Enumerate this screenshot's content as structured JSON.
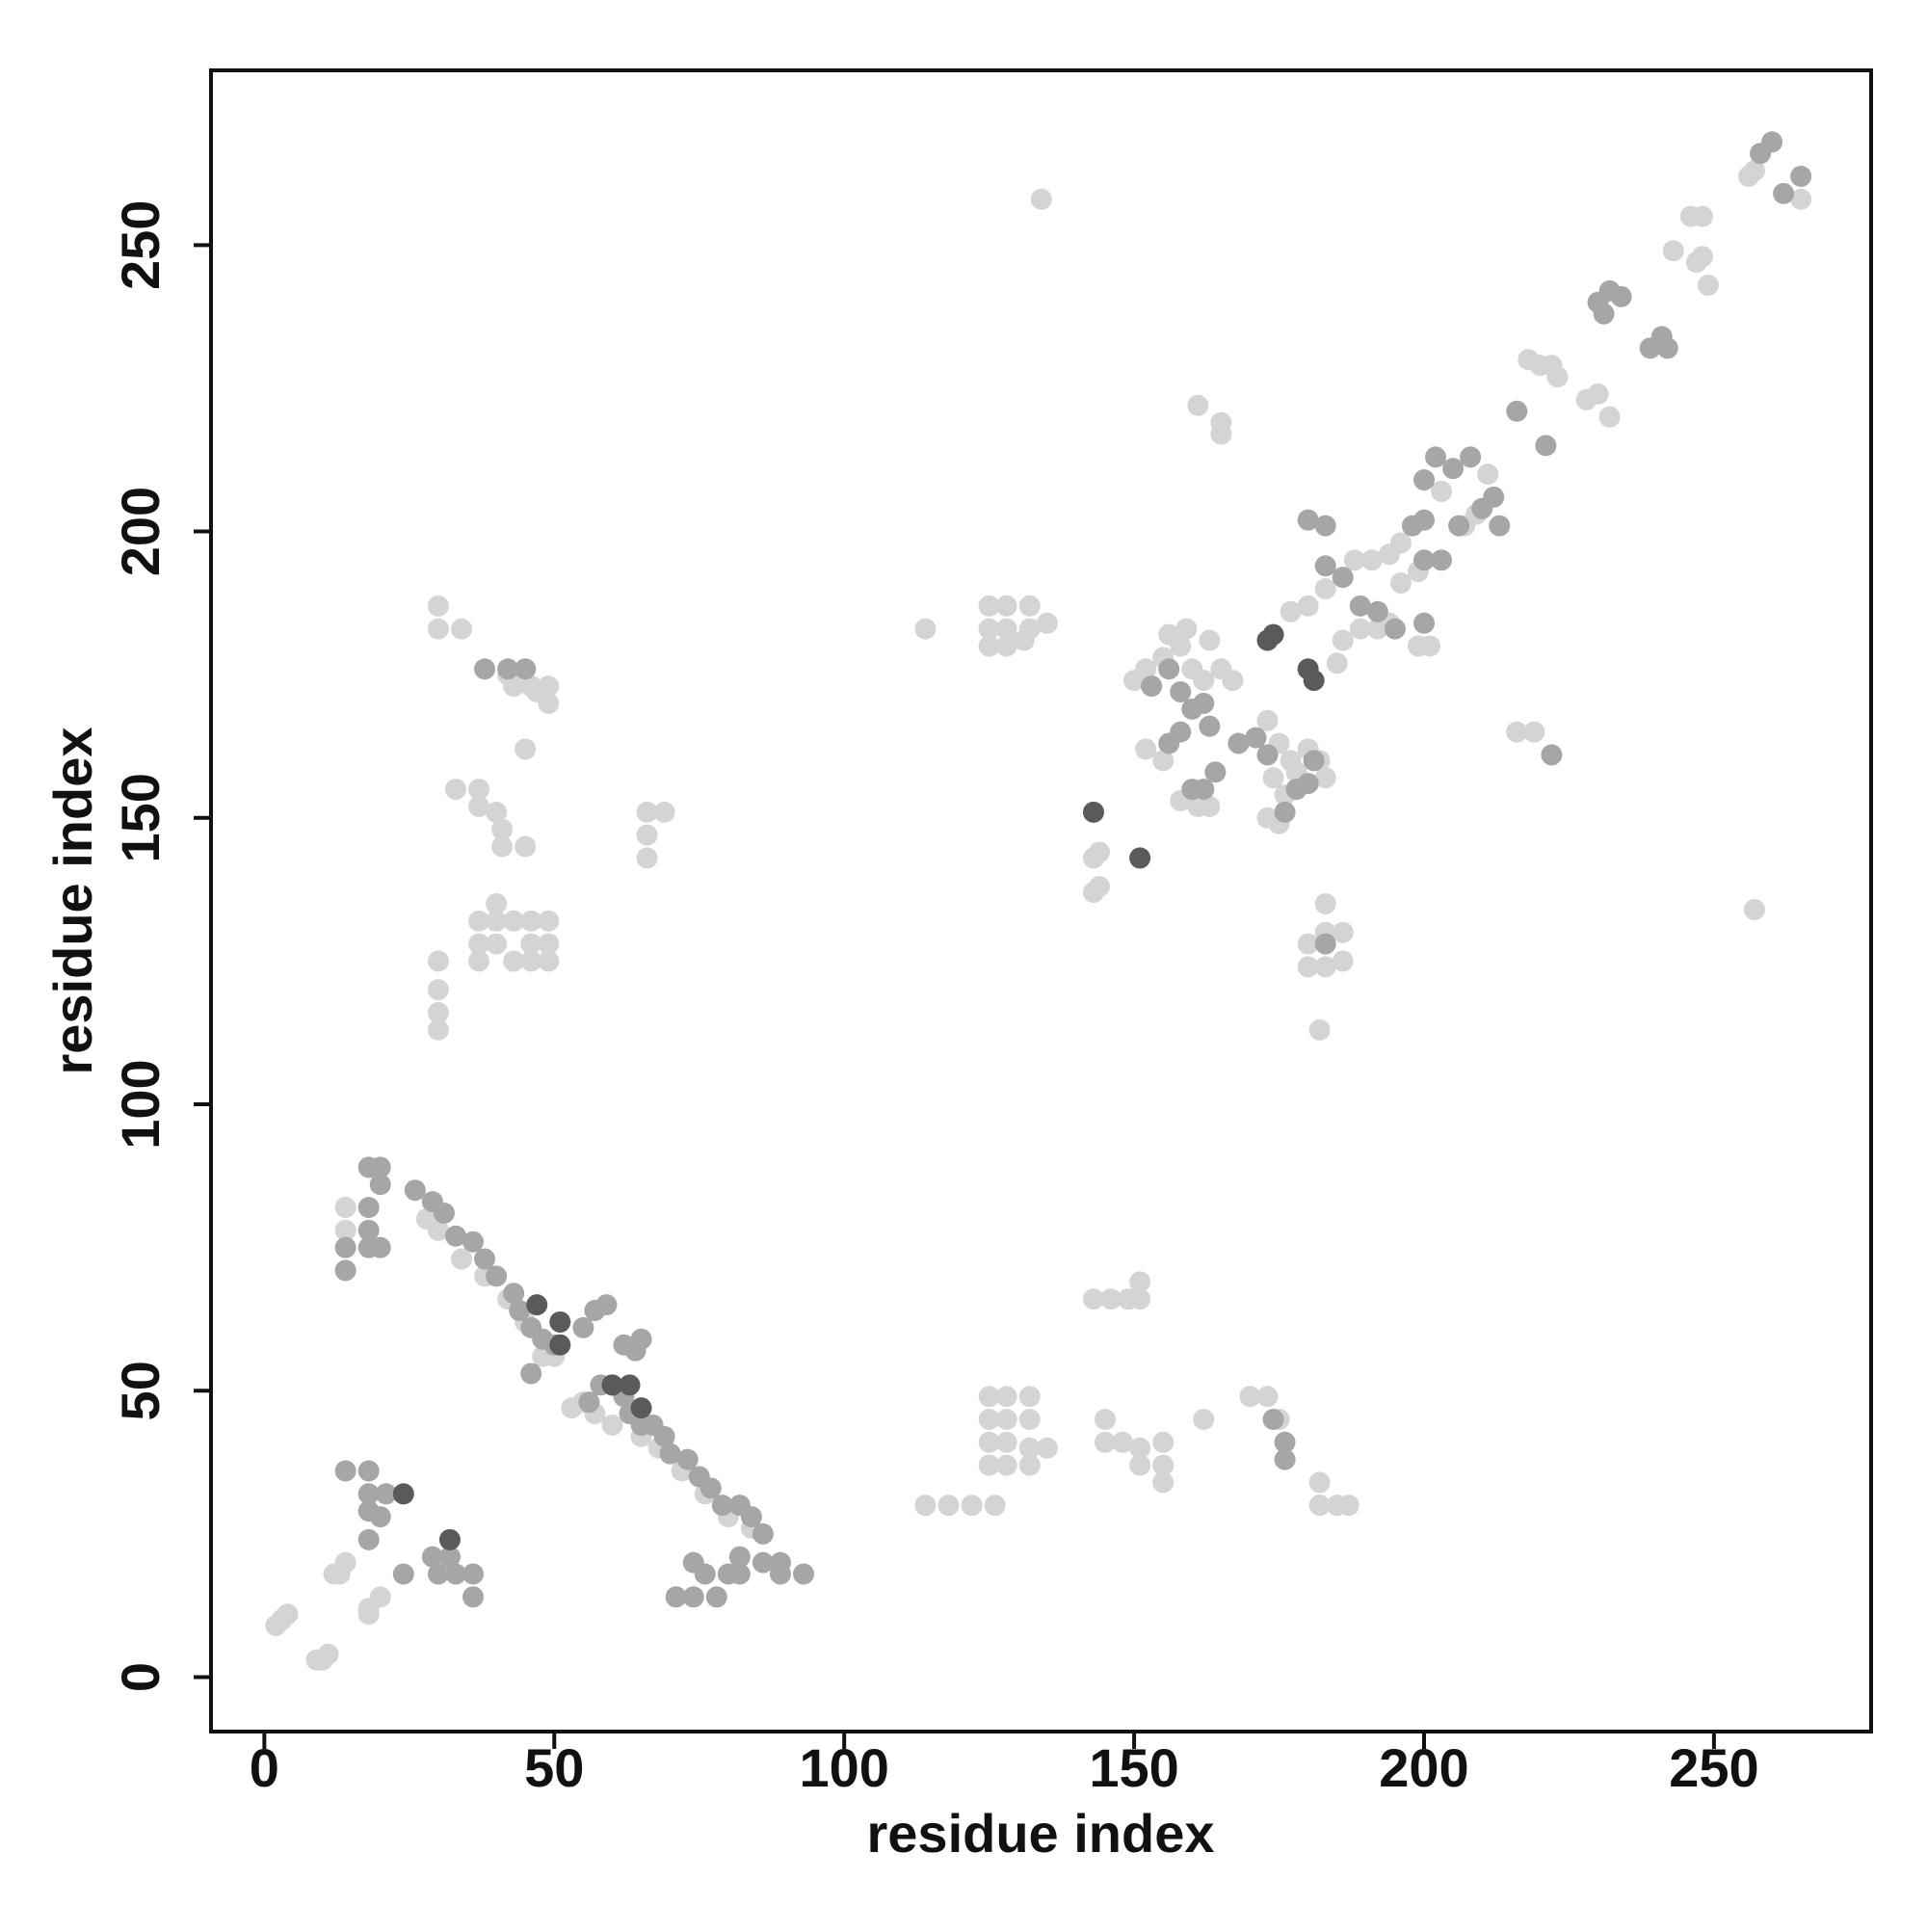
{
  "chart_data": {
    "type": "scatter",
    "x_label": "residue index",
    "y_label": "residue index",
    "xlim": [
      -9.2,
      277.1
    ],
    "ylim": [
      -9.5,
      280.5
    ],
    "xticks": [
      0,
      50,
      100,
      150,
      200,
      250
    ],
    "yticks": [
      0,
      50,
      100,
      150,
      200,
      250
    ],
    "grid": false,
    "series": [
      {
        "color": "#d4d4d4",
        "x": [
          3,
          2,
          4,
          9,
          10,
          11,
          12,
          13,
          14,
          18,
          18,
          20,
          14,
          14,
          28,
          30,
          34,
          38,
          42,
          45,
          48,
          50,
          53,
          55,
          57,
          60,
          65,
          68,
          72,
          76,
          80,
          84,
          30,
          30,
          34,
          30,
          30,
          30,
          30,
          37,
          33,
          37,
          40,
          40,
          37,
          40,
          37,
          37,
          40,
          43,
          43,
          46,
          46,
          46,
          49,
          49,
          49,
          41,
          45,
          41,
          45,
          42,
          45,
          46,
          49,
          49,
          47,
          43,
          66,
          69,
          66,
          66,
          114,
          118,
          122,
          126,
          125,
          128,
          132,
          125,
          128,
          132,
          125,
          128,
          125,
          128,
          132,
          132,
          135,
          143,
          146,
          149,
          151,
          151,
          145,
          145,
          148,
          151,
          151,
          155,
          155,
          155,
          162,
          170,
          173,
          175,
          182,
          182,
          185,
          187,
          114,
          125,
          128,
          132,
          125,
          128,
          132,
          135,
          125,
          128,
          131,
          134,
          150,
          152,
          155,
          158,
          160,
          162,
          165,
          167,
          156,
          159,
          163,
          152,
          155,
          158,
          161,
          163,
          143,
          144,
          143,
          144,
          165,
          165,
          161,
          173,
          175,
          177,
          174,
          176,
          173,
          175,
          178,
          180,
          182,
          183,
          177,
          180,
          183,
          185,
          186,
          189,
          192,
          194,
          196,
          199,
          199,
          201,
          188,
          191,
          194,
          196,
          180,
          180,
          183,
          183,
          186,
          186,
          183,
          182,
          203,
          207,
          209,
          211,
          218,
          220,
          222,
          223,
          228,
          230,
          232,
          243,
          246,
          248,
          247,
          248,
          249,
          256,
          257,
          265,
          216,
          219,
          257
        ],
        "y": [
          10,
          9,
          11,
          3,
          3,
          4,
          18,
          18,
          20,
          11,
          12,
          14,
          82,
          78,
          80,
          78,
          73,
          70,
          66,
          62,
          56,
          56,
          47,
          48,
          46,
          44,
          42,
          40,
          36,
          32,
          28,
          26,
          187,
          183,
          183,
          125,
          120,
          116,
          113,
          155,
          155,
          152,
          151,
          135,
          132,
          132,
          128,
          125,
          128,
          125,
          132,
          132,
          125,
          128,
          132,
          128,
          125,
          145,
          145,
          148,
          162,
          175,
          176,
          173,
          173,
          170,
          172,
          173,
          151,
          151,
          147,
          143,
          30,
          30,
          30,
          30,
          49,
          49,
          49,
          45,
          45,
          45,
          41,
          41,
          37,
          37,
          37,
          40,
          40,
          66,
          66,
          66,
          66,
          69,
          41,
          45,
          41,
          40,
          37,
          37,
          41,
          34,
          45,
          49,
          49,
          45,
          34,
          30,
          30,
          30,
          183,
          187,
          187,
          187,
          183,
          183,
          183,
          184,
          180,
          180,
          181,
          258,
          174,
          176,
          178,
          180,
          176,
          174,
          176,
          174,
          182,
          183,
          181,
          162,
          160,
          153,
          152,
          152,
          143,
          144,
          137,
          138,
          219,
          217,
          222,
          167,
          163,
          160,
          157,
          154,
          150,
          149,
          158,
          162,
          160,
          157,
          186,
          187,
          190,
          177,
          181,
          183,
          183,
          184,
          191,
          193,
          180,
          180,
          195,
          195,
          196,
          198,
          128,
          124,
          124,
          130,
          130,
          125,
          135,
          113,
          207,
          201,
          203,
          210,
          230,
          229,
          229,
          227,
          223,
          224,
          220,
          249,
          255,
          255,
          247,
          248,
          243,
          262,
          263,
          258,
          165,
          165,
          134
        ]
      },
      {
        "color": "#a6a6a6",
        "x": [
          14,
          18,
          18,
          21,
          20,
          18,
          18,
          24,
          30,
          33,
          36,
          36,
          29,
          32,
          14,
          14,
          18,
          20,
          18,
          18,
          18,
          20,
          20,
          26,
          29,
          31,
          33,
          36,
          38,
          40,
          43,
          44,
          46,
          48,
          50,
          46,
          55,
          57,
          59,
          62,
          64,
          65,
          56,
          58,
          60,
          62,
          63,
          65,
          67,
          69,
          70,
          73,
          75,
          77,
          79,
          82,
          84,
          86,
          74,
          71,
          78,
          74,
          76,
          80,
          82,
          82,
          86,
          89,
          89,
          93,
          38,
          42,
          45,
          153,
          156,
          158,
          162,
          163,
          160,
          160,
          162,
          164,
          158,
          156,
          168,
          171,
          173,
          176,
          178,
          180,
          181,
          180,
          183,
          183,
          186,
          189,
          192,
          195,
          198,
          200,
          200,
          200,
          203,
          200,
          202,
          205,
          208,
          206,
          210,
          212,
          213,
          216,
          221,
          222,
          231,
          232,
          234,
          239,
          241,
          242,
          230,
          258,
          260,
          262,
          265,
          176,
          176,
          174,
          183
        ],
        "y": [
          36,
          36,
          32,
          32,
          28,
          29,
          24,
          18,
          18,
          18,
          18,
          14,
          21,
          21,
          75,
          71,
          75,
          75,
          78,
          82,
          89,
          89,
          86,
          85,
          83,
          81,
          77,
          76,
          73,
          70,
          67,
          64,
          61,
          59,
          58,
          53,
          61,
          64,
          65,
          58,
          57,
          59,
          48,
          51,
          51,
          49,
          46,
          44,
          44,
          42,
          39,
          38,
          35,
          33,
          30,
          30,
          28,
          25,
          14,
          14,
          14,
          20,
          18,
          18,
          18,
          21,
          20,
          20,
          18,
          18,
          176,
          176,
          176,
          173,
          176,
          172,
          170,
          166,
          169,
          155,
          155,
          158,
          165,
          163,
          163,
          164,
          161,
          151,
          155,
          156,
          160,
          202,
          201,
          194,
          192,
          187,
          186,
          183,
          201,
          202,
          184,
          195,
          195,
          209,
          213,
          211,
          213,
          201,
          204,
          206,
          201,
          221,
          215,
          161,
          238,
          242,
          241,
          232,
          234,
          232,
          240,
          266,
          268,
          259,
          262,
          41,
          38,
          45,
          128
        ]
      },
      {
        "color": "#5a5a5a",
        "x": [
          24,
          32,
          47,
          65,
          51,
          51,
          60,
          63,
          143,
          151,
          173,
          181,
          180,
          174
        ],
        "y": [
          32,
          24,
          65,
          47,
          62,
          58,
          51,
          51,
          151,
          143,
          181,
          174,
          176,
          182
        ]
      }
    ]
  }
}
